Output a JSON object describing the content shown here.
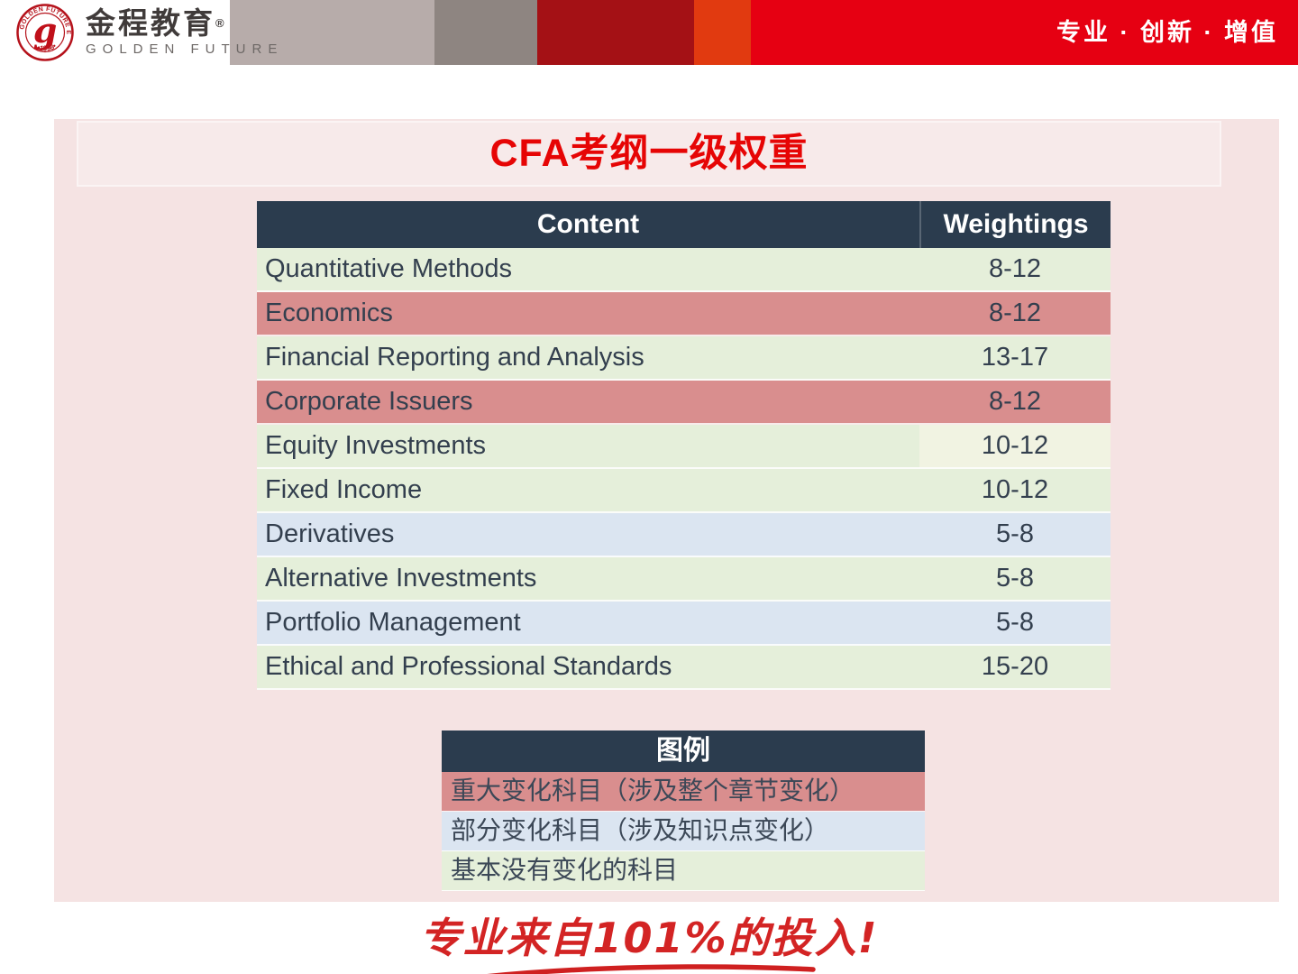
{
  "header": {
    "logo": {
      "seal_top_text": "GOLDEN FUTURE EDUCATION",
      "seal_bottom_text": "•1998•",
      "seal_glyph": "g",
      "brand_cn": "金程教育",
      "brand_reg": "®",
      "brand_en": "GOLDEN FUTURE"
    },
    "tagline": "专业 · 创新 · 增值"
  },
  "title": "CFA考纲一级权重",
  "table": {
    "columns": [
      "Content",
      "Weightings"
    ],
    "rows": [
      {
        "content": "Quantitative Methods",
        "weighting": "8-12",
        "change": "none",
        "highlight_patch": false
      },
      {
        "content": "Economics",
        "weighting": "8-12",
        "change": "major",
        "highlight_patch": false
      },
      {
        "content": "Financial Reporting and Analysis",
        "weighting": "13-17",
        "change": "none",
        "highlight_patch": false
      },
      {
        "content": "Corporate Issuers",
        "weighting": "8-12",
        "change": "major",
        "highlight_patch": false
      },
      {
        "content": "Equity Investments",
        "weighting": "10-12",
        "change": "none",
        "highlight_patch": true
      },
      {
        "content": "Fixed Income",
        "weighting": "10-12",
        "change": "none",
        "highlight_patch": false
      },
      {
        "content": "Derivatives",
        "weighting": "5-8",
        "change": "partial",
        "highlight_patch": false
      },
      {
        "content": "Alternative Investments",
        "weighting": "5-8",
        "change": "none",
        "highlight_patch": false
      },
      {
        "content": "Portfolio Management",
        "weighting": "5-8",
        "change": "partial",
        "highlight_patch": false
      },
      {
        "content": "Ethical and Professional Standards",
        "weighting": "15-20",
        "change": "none",
        "highlight_patch": false
      }
    ]
  },
  "legend": {
    "header": "图例",
    "items": [
      {
        "label": "重大变化科目（涉及整个章节变化）",
        "type": "major"
      },
      {
        "label": "部分变化科目（涉及知识点变化）",
        "type": "partial"
      },
      {
        "label": "基本没有变化的科目",
        "type": "none"
      }
    ]
  },
  "footer": {
    "slogan": "专业来自101%的投入!"
  },
  "colors": {
    "major": "#d98e8e",
    "partial": "#dbe5f1",
    "none": "#e5efda",
    "table_header": "#2b3c4e",
    "patch": "#f1f3e2",
    "accent_red": "#e60012",
    "title_red": "#e60505",
    "banner_tan": "#b7acaa",
    "banner_gray": "#8e8581",
    "banner_dark_red": "#a41115",
    "banner_orange": "#e13a10"
  }
}
